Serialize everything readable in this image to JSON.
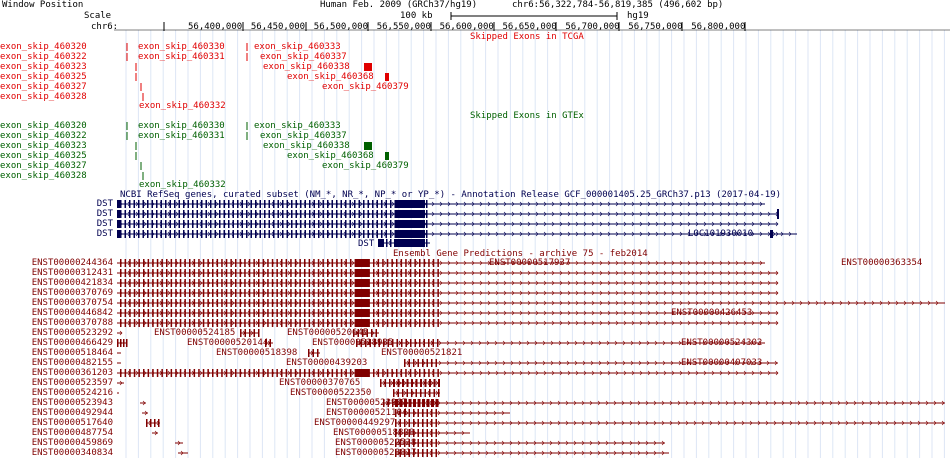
{
  "header": {
    "window_position_label": "Window Position",
    "assembly": "Human Feb. 2009 (GRCh37/hg19)",
    "position": "chr6:56,322,784-56,819,385 (496,602 bp)",
    "scale_label": "Scale",
    "scale_bar_text": "100 kb",
    "scale_assembly": "hg19",
    "chrom_label": "chr6:",
    "ruler_ticks": [
      "56,400,000",
      "56,450,000",
      "56,500,000",
      "56,550,000",
      "56,600,000",
      "56,650,000",
      "56,700,000",
      "56,750,000",
      "56,800,000"
    ]
  },
  "colors": {
    "tcga": "#e00000",
    "gtex": "#006000",
    "refseq": "#000050",
    "ensembl": "#800000"
  },
  "tcga": {
    "title": "Skipped Exons in TCGA",
    "labels": [
      "exon_skip_460320",
      "exon_skip_460322",
      "exon_skip_460323",
      "exon_skip_460325",
      "exon_skip_460327",
      "exon_skip_460328"
    ],
    "features": [
      "exon_skip_460330",
      "exon_skip_460333",
      "exon_skip_460331",
      "exon_skip_460337",
      "exon_skip_460338",
      "exon_skip_460368",
      "exon_skip_460379",
      "exon_skip_460332"
    ]
  },
  "gtex": {
    "title": "Skipped Exons in GTEx",
    "labels": [
      "exon_skip_460320",
      "exon_skip_460322",
      "exon_skip_460323",
      "exon_skip_460325",
      "exon_skip_460327",
      "exon_skip_460328"
    ],
    "features": [
      "exon_skip_460330",
      "exon_skip_460333",
      "exon_skip_460331",
      "exon_skip_460337",
      "exon_skip_460338",
      "exon_skip_460368",
      "exon_skip_460379",
      "exon_skip_460332"
    ]
  },
  "refseq": {
    "title": "NCBI RefSeq genes, curated subset (NM_*, NR_*, NP_* or YP_*) - Annotation Release GCF_000001405.25_GRCh37.p13 (2017-04-19)",
    "labels": [
      "DST",
      "DST",
      "DST",
      "DST"
    ],
    "features": [
      "LOC101930010",
      "DST"
    ]
  },
  "ensembl": {
    "title": "Ensembl Gene Predictions - archive 75 - feb2014",
    "labels": [
      "ENST00000244364",
      "ENST00000312431",
      "ENST00000421834",
      "ENST00000370769",
      "ENST00000370754",
      "ENST00000446842",
      "ENST00000370788",
      "ENST00000523292",
      "ENST00000466429",
      "ENST00000518464",
      "ENST00000482155",
      "ENST00000361203",
      "ENST00000523597",
      "ENST00000524216",
      "ENST00000523943",
      "ENST00000492944",
      "ENST00000517640",
      "ENST00000487754",
      "ENST00000459869",
      "ENST00000340834"
    ],
    "features": [
      "ENST00000517937",
      "ENST00000363354",
      "ENST00000426453",
      "ENST00000524185",
      "ENST00000520645",
      "ENST00000520144",
      "ENST00000518935",
      "ENST00000524302",
      "ENST00000518398",
      "ENST00000521821",
      "ENST00000439203",
      "ENST00000407033",
      "ENST00000370765",
      "ENST00000522350",
      "ENST00000523967",
      "ENST00000521104",
      "ENST00000449297",
      "ENST00000518828",
      "ENST00000522538",
      "ENST00000523817"
    ]
  }
}
